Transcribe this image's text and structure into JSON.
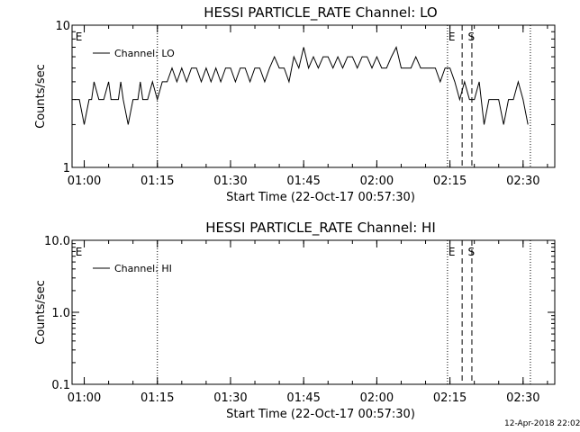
{
  "footer": {
    "date": "12-Apr-2018 22:02"
  },
  "chart_data": [
    {
      "type": "line",
      "title": "HESSI PARTICLE_RATE Channel: LO",
      "xlabel": "Start Time (22-Oct-17 00:57:30)",
      "ylabel": "Counts/sec",
      "yscale": "log",
      "ylim": [
        1,
        10
      ],
      "yticks": [
        1,
        10
      ],
      "ytick_labels": [
        "1",
        "10"
      ],
      "xlim": [
        "00:57:30",
        "02:36:30"
      ],
      "xticks": [
        "01:00",
        "01:15",
        "01:30",
        "01:45",
        "02:00",
        "02:15",
        "02:30"
      ],
      "legend": {
        "position": "top-left",
        "entries": [
          "Channel: LO"
        ]
      },
      "grid": false,
      "flags": [
        {
          "label": "E",
          "time": "00:58:00"
        },
        {
          "label": "E",
          "time": "02:14:30"
        },
        {
          "label": "S",
          "time": "02:18:30"
        }
      ],
      "dotted_markers": [
        "01:15:00",
        "02:14:30",
        "02:31:30"
      ],
      "dashed_markers": [
        "02:17:30",
        "02:19:30"
      ],
      "series": [
        {
          "name": "Channel: LO",
          "x": [
            "00:58:00",
            "00:59:00",
            "01:00:00",
            "01:01:00",
            "01:01:30",
            "01:02:00",
            "01:03:00",
            "01:04:00",
            "01:05:00",
            "01:05:30",
            "01:06:00",
            "01:07:00",
            "01:07:30",
            "01:08:00",
            "01:09:00",
            "01:10:00",
            "01:11:00",
            "01:11:30",
            "01:12:00",
            "01:13:00",
            "01:14:00",
            "01:15:00",
            "01:16:00",
            "01:17:00",
            "01:18:00",
            "01:19:00",
            "01:20:00",
            "01:21:00",
            "01:22:00",
            "01:23:00",
            "01:24:00",
            "01:25:00",
            "01:26:00",
            "01:27:00",
            "01:28:00",
            "01:29:00",
            "01:30:00",
            "01:31:00",
            "01:32:00",
            "01:33:00",
            "01:34:00",
            "01:35:00",
            "01:36:00",
            "01:37:00",
            "01:38:00",
            "01:39:00",
            "01:40:00",
            "01:41:00",
            "01:42:00",
            "01:43:00",
            "01:44:00",
            "01:45:00",
            "01:46:00",
            "01:47:00",
            "01:48:00",
            "01:49:00",
            "01:50:00",
            "01:51:00",
            "01:52:00",
            "01:53:00",
            "01:54:00",
            "01:55:00",
            "01:56:00",
            "01:57:00",
            "01:58:00",
            "01:59:00",
            "02:00:00",
            "02:01:00",
            "02:02:00",
            "02:03:00",
            "02:04:00",
            "02:05:00",
            "02:06:00",
            "02:07:00",
            "02:08:00",
            "02:09:00",
            "02:10:00",
            "02:11:00",
            "02:12:00",
            "02:13:00",
            "02:14:00",
            "02:15:00",
            "02:16:00",
            "02:17:00",
            "02:18:00",
            "02:19:00",
            "02:20:00",
            "02:21:00",
            "02:22:00",
            "02:23:00",
            "02:24:00",
            "02:25:00",
            "02:26:00",
            "02:27:00",
            "02:28:00",
            "02:29:00",
            "02:30:00",
            "02:31:00"
          ],
          "y": [
            3,
            3,
            2,
            3,
            3,
            4,
            3,
            3,
            4,
            3,
            3,
            3,
            4,
            3,
            2,
            3,
            3,
            4,
            3,
            3,
            4,
            3,
            4,
            4,
            5,
            4,
            5,
            4,
            5,
            5,
            4,
            5,
            4,
            5,
            4,
            5,
            5,
            4,
            5,
            5,
            4,
            5,
            5,
            4,
            5,
            6,
            5,
            5,
            4,
            6,
            5,
            7,
            5,
            6,
            5,
            6,
            6,
            5,
            6,
            5,
            6,
            6,
            5,
            6,
            6,
            5,
            6,
            5,
            5,
            6,
            7,
            5,
            5,
            5,
            6,
            5,
            5,
            5,
            5,
            4,
            5,
            5,
            4,
            3,
            4,
            3,
            3,
            4,
            2,
            3,
            3,
            3,
            2,
            3,
            3,
            4,
            3,
            2
          ]
        }
      ]
    },
    {
      "type": "line",
      "title": "HESSI PARTICLE_RATE Channel: HI",
      "xlabel": "Start Time (22-Oct-17 00:57:30)",
      "ylabel": "Counts/sec",
      "yscale": "log",
      "ylim": [
        0.1,
        10
      ],
      "yticks": [
        0.1,
        1,
        10
      ],
      "ytick_labels": [
        "0.1",
        "1.0",
        "10.0"
      ],
      "xlim": [
        "00:57:30",
        "02:36:30"
      ],
      "xticks": [
        "01:00",
        "01:15",
        "01:30",
        "01:45",
        "02:00",
        "02:15",
        "02:30"
      ],
      "legend": {
        "position": "top-left",
        "entries": [
          "Channel: HI"
        ]
      },
      "grid": false,
      "flags": [
        {
          "label": "E",
          "time": "00:58:00"
        },
        {
          "label": "E",
          "time": "02:14:30"
        },
        {
          "label": "S",
          "time": "02:18:30"
        }
      ],
      "dotted_markers": [
        "01:15:00",
        "02:14:30",
        "02:31:30"
      ],
      "dashed_markers": [
        "02:17:30",
        "02:19:30"
      ],
      "series": [
        {
          "name": "Channel: HI",
          "x": [],
          "y": []
        }
      ]
    }
  ]
}
